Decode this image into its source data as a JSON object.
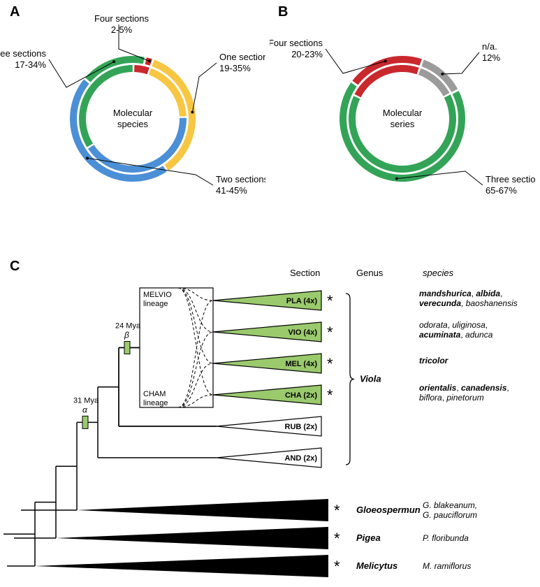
{
  "panelA": {
    "letter": "A",
    "center1": "Molecular",
    "center2": "species",
    "segments": [
      {
        "name": "One section",
        "pct": "19-35%",
        "inner": 19,
        "outer": 35,
        "color": "#f7c642"
      },
      {
        "name": "Two sections",
        "pct": "41-45%",
        "inner": 41,
        "outer": 45,
        "color": "#4b8fd6"
      },
      {
        "name": "Three sections",
        "pct": "17-34%",
        "inner": 34,
        "outer": 17,
        "color": "#33a457"
      },
      {
        "name": "Four sections",
        "pct": "2-5%",
        "inner": 5,
        "outer": 2,
        "color": "#c9282d"
      }
    ]
  },
  "panelB": {
    "letter": "B",
    "center1": "Molecular",
    "center2": "series",
    "segments": [
      {
        "name": "n/a.",
        "pct": "12%",
        "inner": 12,
        "outer": 12,
        "color": "#9b9b9b"
      },
      {
        "name": "Three sections",
        "pct": "65-67%",
        "inner": 65,
        "outer": 67,
        "color": "#33a457"
      },
      {
        "name": "Four sections",
        "pct": "20-23%",
        "inner": 23,
        "outer": 20,
        "color": "#c9282d"
      }
    ]
  },
  "panelC": {
    "letter": "C",
    "headers": {
      "section": "Section",
      "genus": "Genus",
      "species": "species"
    },
    "melvio": "MELVIO",
    "lineage": "lineage",
    "cham": "CHAM",
    "wgd_a": {
      "symbol": "α",
      "time": "31 Mya"
    },
    "wgd_b": {
      "symbol": "β",
      "time": "24 Mya"
    },
    "genus_viola": "Viola",
    "clades": [
      {
        "label": "PLA (4x)",
        "fill": "#9bca6d",
        "star": true,
        "species": [
          {
            "t": "mandshurica",
            "b": true
          },
          {
            "t": ", "
          },
          {
            "t": "albida",
            "b": true
          },
          {
            "t": ","
          },
          {
            "br": true
          },
          {
            "t": "verecunda",
            "b": true
          },
          {
            "t": ", "
          },
          {
            "t": "baoshanensis",
            "b": false
          }
        ]
      },
      {
        "label": "VIO (4x)",
        "fill": "#9bca6d",
        "star": true,
        "species": [
          {
            "t": "odorata",
            "b": false
          },
          {
            "t": ", "
          },
          {
            "t": "uliginosa",
            "b": false
          },
          {
            "t": ","
          },
          {
            "br": true
          },
          {
            "t": "acuminata",
            "b": true
          },
          {
            "t": ", "
          },
          {
            "t": "adunca",
            "b": false
          }
        ]
      },
      {
        "label": "MEL (4x)",
        "fill": "#9bca6d",
        "star": true,
        "species": [
          {
            "t": "tricolor",
            "b": true
          }
        ]
      },
      {
        "label": "CHA (2x)",
        "fill": "#9bca6d",
        "star": true,
        "species": [
          {
            "t": "orientalis",
            "b": true
          },
          {
            "t": ", "
          },
          {
            "t": "canadensis",
            "b": true
          },
          {
            "t": ","
          },
          {
            "br": true
          },
          {
            "t": "biflora",
            "b": false
          },
          {
            "t": ", "
          },
          {
            "t": "pinetorum",
            "b": false
          }
        ]
      },
      {
        "label": "RUB (2x)",
        "fill": "#ffffff",
        "star": false,
        "species": []
      },
      {
        "label": "AND (2x)",
        "fill": "#ffffff",
        "star": false,
        "species": []
      }
    ],
    "outgroups": [
      {
        "genus": "Gloeospermun",
        "species": "G. blakeanum,\nG. pauciflorum",
        "star": true
      },
      {
        "genus": "Pigea",
        "species": "P. floribunda",
        "star": true
      },
      {
        "genus": "Melicytus",
        "species": "M. ramiflorus",
        "star": true
      }
    ]
  },
  "colors": {
    "gap": "#ffffff",
    "line": "#000000",
    "wgd": "#9bca6d"
  }
}
